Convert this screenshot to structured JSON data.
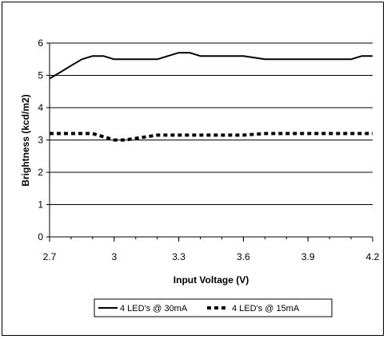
{
  "chart_data": {
    "type": "line",
    "xlabel": "Input Voltage (V)",
    "ylabel": "Brightness (kcd/m2)",
    "xlim": [
      2.7,
      4.2
    ],
    "ylim": [
      0,
      6
    ],
    "x_ticks": [
      "2.7",
      "3",
      "3.3",
      "3.6",
      "3.9",
      "4.2"
    ],
    "y_ticks": [
      "0",
      "1",
      "2",
      "3",
      "4",
      "5",
      "6"
    ],
    "grid": "horizontal",
    "legend_position": "bottom",
    "series": [
      {
        "name": "4 LED's @ 30mA",
        "style": "solid",
        "color": "#000000",
        "x": [
          2.7,
          2.75,
          2.8,
          2.85,
          2.9,
          2.95,
          3.0,
          3.1,
          3.2,
          3.25,
          3.3,
          3.35,
          3.4,
          3.5,
          3.6,
          3.65,
          3.7,
          3.8,
          3.9,
          4.0,
          4.1,
          4.15,
          4.2
        ],
        "y": [
          4.9,
          5.1,
          5.3,
          5.5,
          5.6,
          5.6,
          5.5,
          5.5,
          5.5,
          5.6,
          5.7,
          5.7,
          5.6,
          5.6,
          5.6,
          5.55,
          5.5,
          5.5,
          5.5,
          5.5,
          5.5,
          5.6,
          5.6
        ]
      },
      {
        "name": "4 LED's @ 15mA",
        "style": "dashed",
        "color": "#000000",
        "x": [
          2.7,
          2.8,
          2.9,
          2.95,
          3.0,
          3.05,
          3.1,
          3.2,
          3.3,
          3.4,
          3.5,
          3.6,
          3.7,
          3.8,
          3.9,
          4.0,
          4.1,
          4.2
        ],
        "y": [
          3.2,
          3.2,
          3.2,
          3.1,
          3.0,
          3.0,
          3.05,
          3.15,
          3.15,
          3.15,
          3.15,
          3.15,
          3.2,
          3.2,
          3.2,
          3.2,
          3.2,
          3.2
        ]
      }
    ]
  }
}
